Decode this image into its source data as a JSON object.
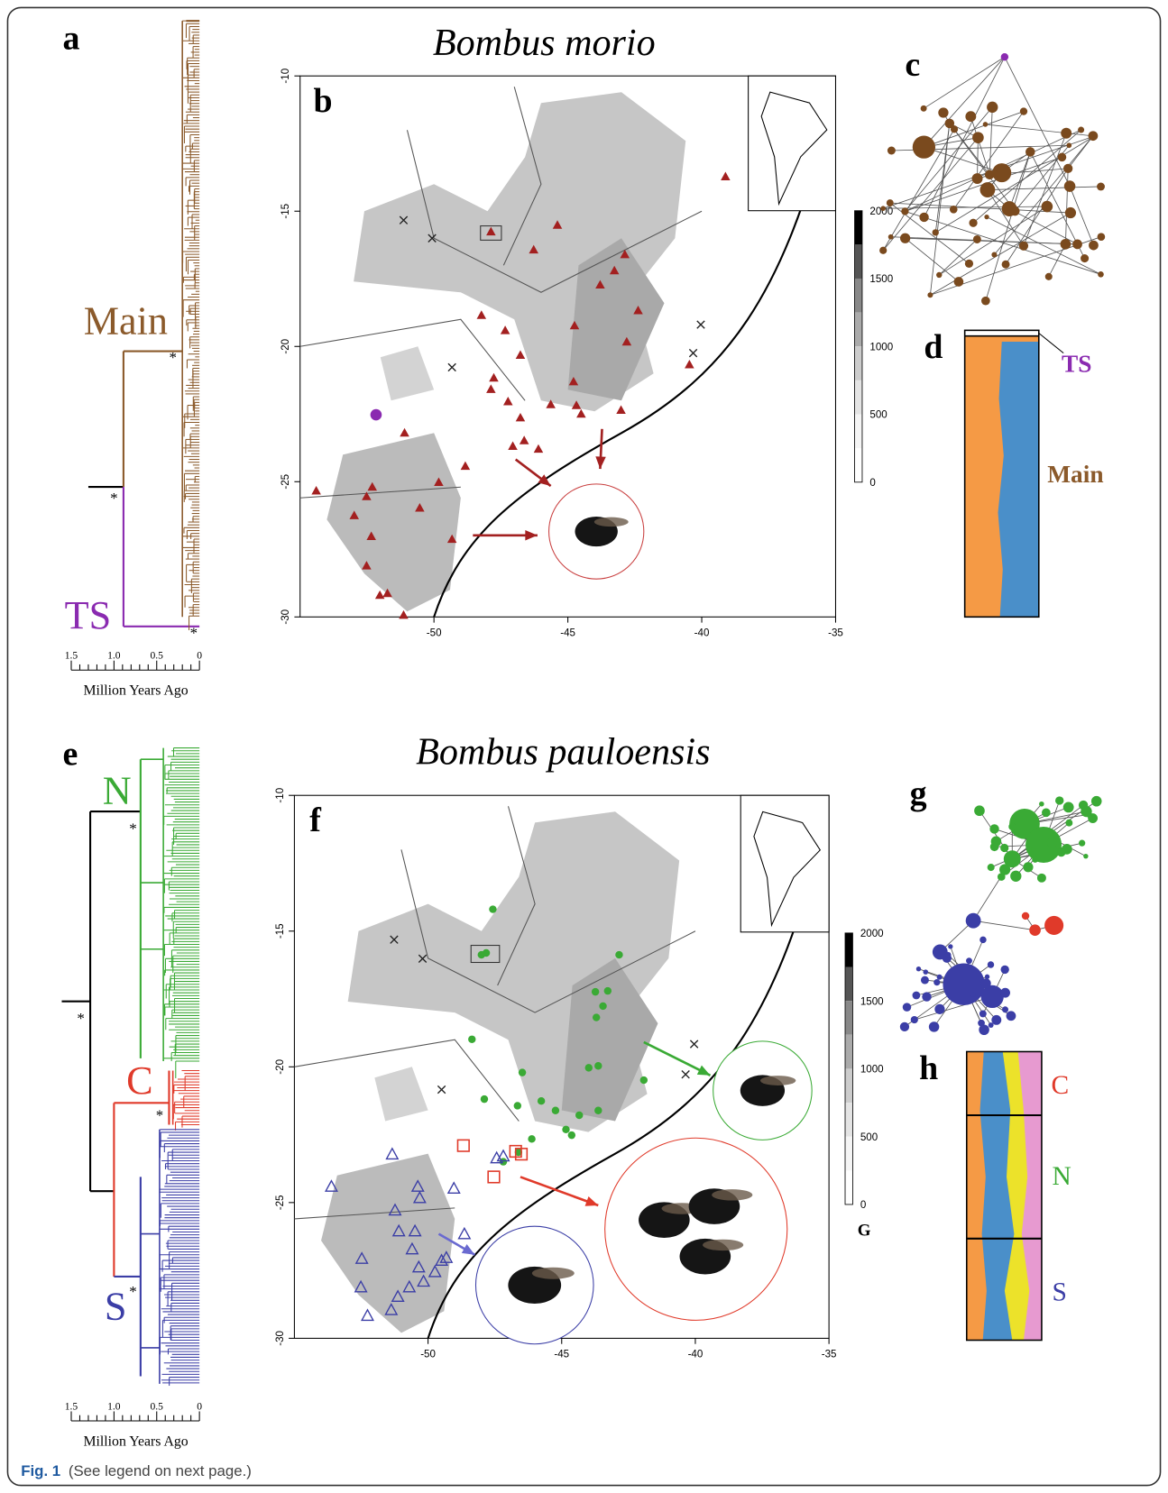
{
  "top": {
    "panel_a": "a",
    "title": "Bombus morio",
    "panel_b": "b",
    "panel_c": "c",
    "panel_d": "d",
    "tree": {
      "clades": [
        "Main",
        "TS"
      ],
      "support": [
        "*",
        "*",
        "*"
      ],
      "axis_ticks": [
        "1.5",
        "1.0",
        "0.5",
        "0"
      ],
      "axis_title": "Million Years Ago"
    },
    "map": {
      "yticks": [
        -10,
        -15,
        -20,
        -25,
        -30
      ],
      "xticks": [
        -50,
        -45,
        -40,
        -35
      ],
      "scale_ticks": [
        2000,
        1500,
        1000,
        500,
        0
      ]
    },
    "structure": {
      "labels": [
        "TS",
        "Main"
      ]
    }
  },
  "bottom": {
    "panel_e": "e",
    "title": "Bombus pauloensis",
    "panel_f": "f",
    "panel_g": "g",
    "panel_h": "h",
    "tree": {
      "clades": [
        "N",
        "C",
        "S"
      ],
      "support": [
        "*",
        "*",
        "*",
        "*"
      ],
      "axis_ticks": [
        "1.5",
        "1.0",
        "0.5",
        "0"
      ],
      "axis_title": "Million Years Ago"
    },
    "map": {
      "yticks": [
        -10,
        -15,
        -20,
        -25,
        -30
      ],
      "xticks": [
        -50,
        -45,
        -40,
        -35
      ],
      "scale_ticks": [
        2000,
        1500,
        1000,
        500,
        0
      ],
      "scale_unit": "G"
    },
    "structure": {
      "labels": [
        "C",
        "N",
        "S"
      ]
    }
  },
  "caption": {
    "label": "Fig. 1",
    "text": "(See legend on next page.)"
  }
}
